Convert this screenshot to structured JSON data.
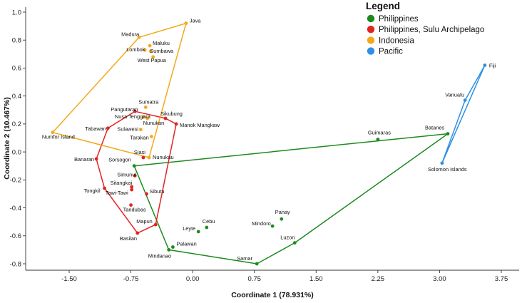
{
  "chart_data": {
    "type": "scatter",
    "title": "",
    "xlabel": "Coordinate 1 (78.931%)",
    "ylabel": "Coordinate 2 (10.467%)",
    "xlim": [
      -1.87,
      3.96
    ],
    "ylim": [
      -0.92,
      1.0
    ],
    "xticks": [
      -1.5,
      -0.75,
      0.0,
      0.75,
      1.5,
      2.25,
      3.0,
      3.75
    ],
    "xtick_labels": [
      "-1.50",
      "-0.75",
      "0.00",
      "0.75",
      "1.50",
      "2.25",
      "3.00",
      "3.75"
    ],
    "yticks": [
      -0.8,
      -0.6,
      -0.4,
      -0.2,
      0.0,
      0.2,
      0.4,
      0.6,
      0.8,
      1.0
    ],
    "ytick_labels": [
      "-0.8",
      "-0.6",
      "-0.4",
      "-0.2",
      "0.0",
      "0.2",
      "0.4",
      "0.6",
      "0.8",
      "1.0"
    ],
    "grid": false,
    "legend": {
      "title": "Legend",
      "position": "top-right",
      "entries": [
        {
          "name": "Philippines",
          "color": "#1e8a1e"
        },
        {
          "name": "Philippines, Sulu Archipelago",
          "color": "#e32222"
        },
        {
          "name": "Indonesia",
          "color": "#f2aa1c"
        },
        {
          "name": "Pacific",
          "color": "#2f8fe3"
        }
      ]
    },
    "series": [
      {
        "name": "Philippines",
        "color": "#1e8a1e",
        "points": [
          {
            "label": "Sorsogon",
            "x": -0.71,
            "y": -0.1
          },
          {
            "label": "Mindanao",
            "x": -0.29,
            "y": -0.7
          },
          {
            "label": "Palawan",
            "x": -0.24,
            "y": -0.68
          },
          {
            "label": "Leyte",
            "x": 0.07,
            "y": -0.57
          },
          {
            "label": "Cebu",
            "x": 0.17,
            "y": -0.54
          },
          {
            "label": "Samar",
            "x": 0.78,
            "y": -0.8
          },
          {
            "label": "Mindoro",
            "x": 0.97,
            "y": -0.53
          },
          {
            "label": "Panay",
            "x": 1.08,
            "y": -0.48
          },
          {
            "label": "Luzon",
            "x": 1.24,
            "y": -0.65
          },
          {
            "label": "Guimaras",
            "x": 2.25,
            "y": 0.09
          },
          {
            "label": "Batanes",
            "x": 3.1,
            "y": 0.13
          }
        ],
        "hull": [
          "Sorsogon",
          "Batanes",
          "Luzon",
          "Samar",
          "Mindanao",
          "Sorsogon"
        ]
      },
      {
        "name": "Philippines, Sulu Archipelago",
        "color": "#e32222",
        "points": [
          {
            "label": "Pangutaran",
            "x": -0.7,
            "y": 0.29
          },
          {
            "label": "Sikubung",
            "x": -0.33,
            "y": 0.24
          },
          {
            "label": "Manok Mangkaw",
            "x": -0.2,
            "y": 0.2
          },
          {
            "label": "Tabawan",
            "x": -1.03,
            "y": 0.17
          },
          {
            "label": "Siasi",
            "x": -0.6,
            "y": -0.04
          },
          {
            "label": "Banaran",
            "x": -1.17,
            "y": -0.05
          },
          {
            "label": "Simunul",
            "x": -0.7,
            "y": -0.17
          },
          {
            "label": "Sitangkai",
            "x": -0.74,
            "y": -0.25
          },
          {
            "label": "Tawi-Tawi",
            "x": -0.74,
            "y": -0.27
          },
          {
            "label": "Tongkil",
            "x": -1.07,
            "y": -0.26
          },
          {
            "label": "Sibutu",
            "x": -0.56,
            "y": -0.3
          },
          {
            "label": "Tandubas",
            "x": -0.75,
            "y": -0.38
          },
          {
            "label": "Mapun",
            "x": -0.45,
            "y": -0.52
          },
          {
            "label": "Basilan",
            "x": -0.67,
            "y": -0.58
          }
        ],
        "hull": [
          "Pangutaran",
          "Sikubung",
          "Manok Mangkaw",
          "Mapun",
          "Basilan",
          "Tongkil",
          "Banaran",
          "Tabawan",
          "Pangutaran"
        ]
      },
      {
        "name": "Indonesia",
        "color": "#f2aa1c",
        "points": [
          {
            "label": "Java",
            "x": -0.08,
            "y": 0.92
          },
          {
            "label": "Madura",
            "x": -0.65,
            "y": 0.82
          },
          {
            "label": "Maluku",
            "x": -0.52,
            "y": 0.76
          },
          {
            "label": "Lombok",
            "x": -0.58,
            "y": 0.73
          },
          {
            "label": "Sumbawa",
            "x": -0.51,
            "y": 0.72
          },
          {
            "label": "West Papua",
            "x": -0.48,
            "y": 0.68
          },
          {
            "label": "Sumatra",
            "x": -0.57,
            "y": 0.32
          },
          {
            "label": "Nusa Tenggara",
            "x": -0.6,
            "y": 0.25
          },
          {
            "label": "Nunukan",
            "x": -0.55,
            "y": 0.24
          },
          {
            "label": "Sulawesi",
            "x": -0.63,
            "y": 0.16
          },
          {
            "label": "Tarakan",
            "x": -0.5,
            "y": 0.11
          },
          {
            "label": "Numfor Island",
            "x": -1.7,
            "y": 0.14
          },
          {
            "label": "Nunukau",
            "x": -0.53,
            "y": -0.04
          }
        ],
        "hull": [
          "Madura",
          "Java",
          "Nunukau",
          "Numfor Island",
          "Madura"
        ]
      },
      {
        "name": "Pacific",
        "color": "#2f8fe3",
        "points": [
          {
            "label": "Fiji",
            "x": 3.55,
            "y": 0.62
          },
          {
            "label": "Vanuatu",
            "x": 3.31,
            "y": 0.37
          },
          {
            "label": "Solomon Islands",
            "x": 3.03,
            "y": -0.08
          }
        ],
        "hull": [
          "Fiji",
          "Vanuatu",
          "Solomon Islands",
          "Fiji"
        ]
      }
    ]
  }
}
